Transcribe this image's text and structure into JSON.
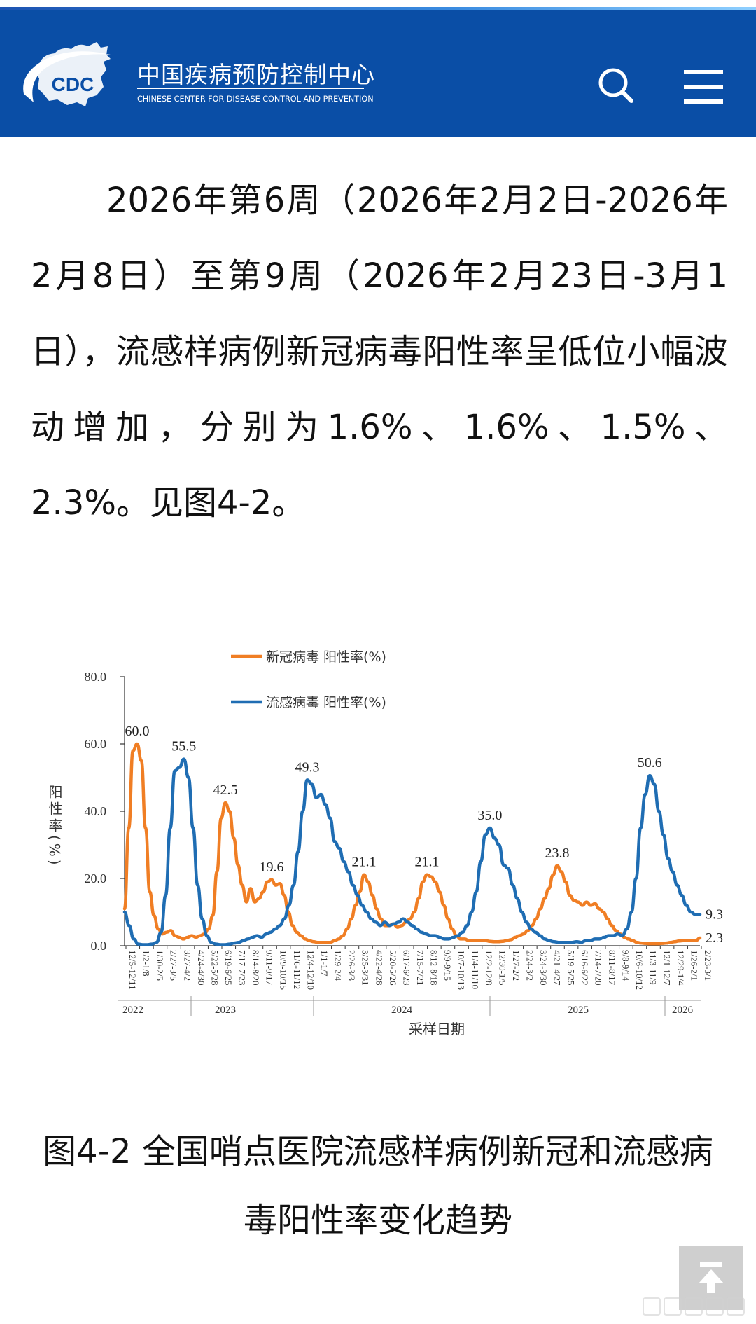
{
  "header": {
    "logo_text": "CDC",
    "org_name_cn": "中国疾病预防控制中心",
    "org_name_en": "CHINESE CENTER FOR DISEASE CONTROL AND PREVENTION",
    "bg_color": "#0a4ea6",
    "search_icon": "search-icon",
    "menu_icon": "hamburger-menu-icon"
  },
  "article": {
    "paragraph": "2026年第6周（2026年2月2日-2026年2月8日）至第9周（2026年2月23日-3月1日），流感样病例新冠病毒阳性率呈低位小幅波动增加，分别为1.6%、1.6%、1.5%、2.3%。见图4-2。"
  },
  "chart_data": {
    "type": "line",
    "legend": [
      "新冠病毒 阳性率(%)",
      "流感病毒 阳性率(%)"
    ],
    "legend_position": "top-center",
    "ylabel": "阳性率(%)",
    "xlabel": "采样日期",
    "ylim": [
      0,
      80
    ],
    "yticks": [
      "0.0",
      "20.0",
      "40.0",
      "60.0",
      "80.0"
    ],
    "grid": false,
    "n_points": 170,
    "x_tick_labels": [
      "12/5-12/11",
      "1/2-1/8",
      "1/30-2/5",
      "2/27-3/5",
      "3/27-4/2",
      "4/24-4/30",
      "5/22-5/28",
      "6/19-6/25",
      "7/17-7/23",
      "8/14-8/20",
      "9/11-9/17",
      "10/9-10/15",
      "11/6-11/12",
      "12/4-12/10",
      "1/1-1/7",
      "1/29-2/4",
      "2/26-3/3",
      "3/25-3/31",
      "4/22-4/28",
      "5/20-5/26",
      "6/17-6/23",
      "7/15-7/21",
      "8/12-8/18",
      "9/9-9/15",
      "10/7-10/13",
      "11/4-11/10",
      "12/2-12/8",
      "12/30-1/5",
      "1/27-2/2",
      "2/24-3/2",
      "3/24-3/30",
      "4/21-4/27",
      "5/19-5/25",
      "6/16-6/22",
      "7/14-7/20",
      "8/11-8/17",
      "9/8-9/14",
      "10/6-10/12",
      "11/3-11/9",
      "12/1-12/7",
      "12/29-1/4",
      "1/26-2/1",
      "2/23-3/1"
    ],
    "year_labels": [
      "2022",
      "2023",
      "2024",
      "2025",
      "2026"
    ],
    "series": [
      {
        "name": "新冠病毒 阳性率(%)",
        "color": "#f07e24",
        "keypoints": [
          [
            0,
            11
          ],
          [
            1,
            35
          ],
          [
            2,
            58
          ],
          [
            3,
            60
          ],
          [
            4,
            55
          ],
          [
            5,
            35
          ],
          [
            6,
            16
          ],
          [
            7,
            9
          ],
          [
            8,
            5
          ],
          [
            9,
            3.5
          ],
          [
            10,
            4
          ],
          [
            11,
            4.5
          ],
          [
            12,
            3
          ],
          [
            13,
            2.5
          ],
          [
            14,
            2
          ],
          [
            15,
            2.5
          ],
          [
            16,
            3
          ],
          [
            17,
            2.5
          ],
          [
            18,
            3
          ],
          [
            19,
            3.5
          ],
          [
            20,
            5
          ],
          [
            21,
            9
          ],
          [
            22,
            22
          ],
          [
            23,
            38
          ],
          [
            24,
            42.5
          ],
          [
            25,
            40
          ],
          [
            26,
            32
          ],
          [
            27,
            24
          ],
          [
            28,
            18
          ],
          [
            29,
            13
          ],
          [
            30,
            17
          ],
          [
            31,
            13
          ],
          [
            32,
            14
          ],
          [
            33,
            16
          ],
          [
            34,
            19
          ],
          [
            35,
            19.6
          ],
          [
            36,
            18
          ],
          [
            37,
            18.5
          ],
          [
            38,
            15
          ],
          [
            39,
            10
          ],
          [
            40,
            6
          ],
          [
            41,
            4
          ],
          [
            42,
            3
          ],
          [
            43,
            2
          ],
          [
            44,
            1.5
          ],
          [
            45,
            1.2
          ],
          [
            46,
            1
          ],
          [
            47,
            1
          ],
          [
            48,
            1
          ],
          [
            49,
            1
          ],
          [
            50,
            1.5
          ],
          [
            51,
            2
          ],
          [
            52,
            3
          ],
          [
            53,
            5
          ],
          [
            54,
            8
          ],
          [
            55,
            12
          ],
          [
            56,
            16
          ],
          [
            57,
            21.1
          ],
          [
            58,
            19
          ],
          [
            59,
            15
          ],
          [
            60,
            11
          ],
          [
            61,
            8
          ],
          [
            62,
            6
          ],
          [
            63,
            6
          ],
          [
            64,
            6.5
          ],
          [
            65,
            5.5
          ],
          [
            66,
            6
          ],
          [
            67,
            7
          ],
          [
            68,
            8
          ],
          [
            69,
            10
          ],
          [
            70,
            14
          ],
          [
            71,
            19
          ],
          [
            72,
            21.1
          ],
          [
            73,
            20.5
          ],
          [
            74,
            19
          ],
          [
            75,
            16
          ],
          [
            76,
            12
          ],
          [
            77,
            8
          ],
          [
            78,
            5
          ],
          [
            79,
            3
          ],
          [
            80,
            2
          ],
          [
            81,
            2
          ],
          [
            82,
            1.5
          ],
          [
            83,
            1.5
          ],
          [
            84,
            1.5
          ],
          [
            85,
            1.5
          ],
          [
            86,
            1.5
          ],
          [
            87,
            1.3
          ],
          [
            88,
            1.2
          ],
          [
            89,
            1.2
          ],
          [
            90,
            1.3
          ],
          [
            91,
            1.5
          ],
          [
            92,
            1.8
          ],
          [
            93,
            2.5
          ],
          [
            94,
            3
          ],
          [
            95,
            3.5
          ],
          [
            96,
            4.5
          ],
          [
            97,
            6
          ],
          [
            98,
            8
          ],
          [
            99,
            11
          ],
          [
            100,
            14
          ],
          [
            101,
            17
          ],
          [
            102,
            21
          ],
          [
            103,
            23.8
          ],
          [
            104,
            22
          ],
          [
            105,
            19
          ],
          [
            106,
            15
          ],
          [
            107,
            13.5
          ],
          [
            108,
            13
          ],
          [
            109,
            12
          ],
          [
            110,
            13
          ],
          [
            111,
            12
          ],
          [
            112,
            12.5
          ],
          [
            113,
            11
          ],
          [
            114,
            10
          ],
          [
            115,
            8
          ],
          [
            116,
            6
          ],
          [
            117,
            4.5
          ],
          [
            118,
            3.5
          ],
          [
            119,
            2.5
          ],
          [
            120,
            2
          ],
          [
            121,
            1.5
          ],
          [
            122,
            1
          ],
          [
            123,
            0.8
          ],
          [
            124,
            0.7
          ],
          [
            125,
            0.6
          ],
          [
            126,
            0.6
          ],
          [
            127,
            0.6
          ],
          [
            128,
            0.7
          ],
          [
            129,
            0.8
          ],
          [
            130,
            1
          ],
          [
            131,
            1.2
          ],
          [
            132,
            1.4
          ],
          [
            133,
            1.5
          ],
          [
            134,
            1.6
          ],
          [
            135,
            1.6
          ],
          [
            136,
            1.5
          ],
          [
            137,
            2.3
          ]
        ]
      },
      {
        "name": "流感病毒 阳性率(%)",
        "color": "#1f6db3",
        "keypoints": [
          [
            0,
            10
          ],
          [
            1,
            6
          ],
          [
            2,
            2
          ],
          [
            3,
            0.5
          ],
          [
            4,
            0.3
          ],
          [
            5,
            0.3
          ],
          [
            6,
            0.5
          ],
          [
            7,
            1
          ],
          [
            8,
            4
          ],
          [
            9,
            15
          ],
          [
            10,
            35
          ],
          [
            11,
            52
          ],
          [
            12,
            53
          ],
          [
            13,
            55.5
          ],
          [
            14,
            50
          ],
          [
            15,
            35
          ],
          [
            16,
            18
          ],
          [
            17,
            8
          ],
          [
            18,
            3
          ],
          [
            19,
            1
          ],
          [
            20,
            0.5
          ],
          [
            21,
            0.3
          ],
          [
            22,
            0.3
          ],
          [
            23,
            0.5
          ],
          [
            24,
            0.8
          ],
          [
            25,
            1
          ],
          [
            26,
            1.5
          ],
          [
            27,
            2
          ],
          [
            28,
            2.5
          ],
          [
            29,
            3
          ],
          [
            30,
            2.5
          ],
          [
            31,
            3.5
          ],
          [
            32,
            4
          ],
          [
            33,
            5
          ],
          [
            34,
            6
          ],
          [
            35,
            8
          ],
          [
            36,
            12
          ],
          [
            37,
            18
          ],
          [
            38,
            28
          ],
          [
            39,
            40
          ],
          [
            40,
            49.3
          ],
          [
            41,
            48
          ],
          [
            42,
            44
          ],
          [
            43,
            45
          ],
          [
            44,
            42
          ],
          [
            45,
            38
          ],
          [
            46,
            31
          ],
          [
            47,
            29
          ],
          [
            48,
            25
          ],
          [
            49,
            22
          ],
          [
            50,
            18
          ],
          [
            51,
            15
          ],
          [
            52,
            12
          ],
          [
            53,
            10
          ],
          [
            54,
            8
          ],
          [
            55,
            7
          ],
          [
            56,
            6
          ],
          [
            57,
            7
          ],
          [
            58,
            6
          ],
          [
            59,
            6.5
          ],
          [
            60,
            7
          ],
          [
            61,
            8
          ],
          [
            62,
            7
          ],
          [
            63,
            6
          ],
          [
            64,
            5
          ],
          [
            65,
            4
          ],
          [
            66,
            3.5
          ],
          [
            67,
            3
          ],
          [
            68,
            3
          ],
          [
            69,
            2.5
          ],
          [
            70,
            2
          ],
          [
            71,
            2
          ],
          [
            72,
            2.5
          ],
          [
            73,
            3
          ],
          [
            74,
            4
          ],
          [
            75,
            6
          ],
          [
            76,
            10
          ],
          [
            77,
            16
          ],
          [
            78,
            25
          ],
          [
            79,
            33
          ],
          [
            80,
            35
          ],
          [
            81,
            32
          ],
          [
            82,
            30
          ],
          [
            83,
            24
          ],
          [
            84,
            23
          ],
          [
            85,
            18
          ],
          [
            86,
            14
          ],
          [
            87,
            10
          ],
          [
            88,
            7
          ],
          [
            89,
            5
          ],
          [
            90,
            4
          ],
          [
            91,
            3
          ],
          [
            92,
            2
          ],
          [
            93,
            1.5
          ],
          [
            94,
            1.2
          ],
          [
            95,
            1
          ],
          [
            96,
            1
          ],
          [
            97,
            1
          ],
          [
            98,
            1
          ],
          [
            99,
            1.2
          ],
          [
            100,
            1
          ],
          [
            101,
            1.5
          ],
          [
            102,
            1.5
          ],
          [
            103,
            2
          ],
          [
            104,
            2
          ],
          [
            105,
            2.5
          ],
          [
            106,
            3
          ],
          [
            107,
            3
          ],
          [
            108,
            3.5
          ],
          [
            109,
            3
          ],
          [
            110,
            5
          ],
          [
            111,
            10
          ],
          [
            112,
            20
          ],
          [
            113,
            35
          ],
          [
            114,
            45
          ],
          [
            115,
            50.6
          ],
          [
            116,
            48
          ],
          [
            117,
            40
          ],
          [
            118,
            33
          ],
          [
            119,
            26
          ],
          [
            120,
            22
          ],
          [
            121,
            18
          ],
          [
            122,
            15
          ],
          [
            123,
            12
          ],
          [
            124,
            10
          ],
          [
            125,
            9.3
          ],
          [
            126,
            9.3
          ]
        ]
      }
    ],
    "annotations": [
      {
        "text": "60.0",
        "series": 0,
        "at": 3
      },
      {
        "text": "55.5",
        "series": 1,
        "at": 13
      },
      {
        "text": "42.5",
        "series": 0,
        "at": 24
      },
      {
        "text": "19.6",
        "series": 0,
        "at": 35
      },
      {
        "text": "49.3",
        "series": 1,
        "at": 40
      },
      {
        "text": "21.1",
        "series": 0,
        "at": 57
      },
      {
        "text": "21.1",
        "series": 0,
        "at": 72
      },
      {
        "text": "35.0",
        "series": 1,
        "at": 80
      },
      {
        "text": "23.8",
        "series": 0,
        "at": 103
      },
      {
        "text": "50.6",
        "series": 1,
        "at": 115
      },
      {
        "text": "9.3",
        "series": 1,
        "at": "end"
      },
      {
        "text": "2.3",
        "series": 0,
        "at": "end"
      }
    ]
  },
  "caption": {
    "text": "图4-2 全国哨点医院流感样病例新冠和流感病毒阳性率变化趋势"
  },
  "scroll_top": {
    "icon": "arrow-up-to-top-icon"
  }
}
